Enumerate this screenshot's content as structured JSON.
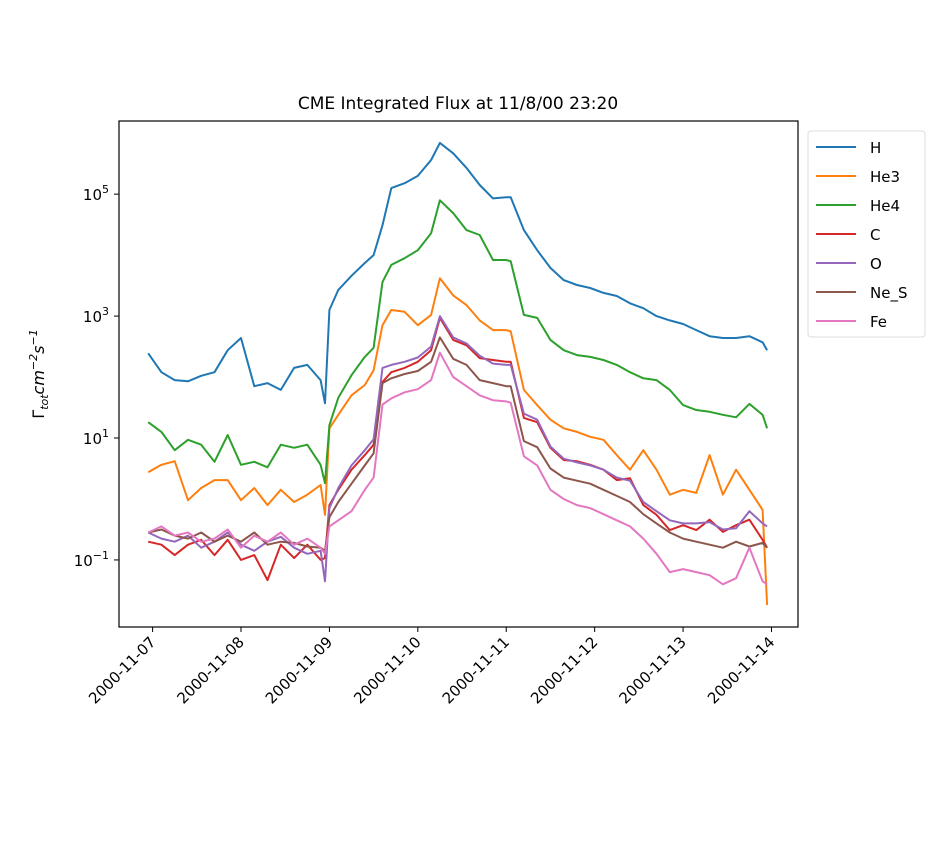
{
  "chart_data": {
    "type": "line",
    "title": "CME Integrated Flux at 11/8/00 23:20",
    "xlabel": "",
    "ylabel": {
      "symbol": "Γ",
      "sub": "tot",
      "unit1": "cm",
      "exp1": "−2",
      "unit2": "s",
      "exp2": "−1"
    },
    "yscale": "log",
    "y_values_are": "log10 of flux",
    "ylim_log10": [
      -2.1,
      6.2
    ],
    "xlim_day_of_nov_2000": [
      6.62,
      14.3
    ],
    "yticks_log10": [
      -1,
      1,
      3,
      5
    ],
    "ytick_labels": [
      {
        "base": "10",
        "exp": "−1"
      },
      {
        "base": "10",
        "exp": "1"
      },
      {
        "base": "10",
        "exp": "3"
      },
      {
        "base": "10",
        "exp": "5"
      }
    ],
    "xticks_day": [
      7,
      8,
      9,
      10,
      11,
      12,
      13,
      14
    ],
    "xtick_labels": [
      "2000-11-07",
      "2000-11-08",
      "2000-11-09",
      "2000-11-10",
      "2000-11-11",
      "2000-11-12",
      "2000-11-13",
      "2000-11-14"
    ],
    "legend_position": "outside-upper-right",
    "grid": false,
    "x_day": [
      6.95,
      7.1,
      7.25,
      7.4,
      7.55,
      7.7,
      7.85,
      8.0,
      8.15,
      8.3,
      8.45,
      8.6,
      8.75,
      8.9,
      8.95,
      9.0,
      9.1,
      9.25,
      9.4,
      9.5,
      9.6,
      9.7,
      9.85,
      10.0,
      10.15,
      10.25,
      10.4,
      10.55,
      10.7,
      10.85,
      11.0,
      11.05,
      11.2,
      11.35,
      11.5,
      11.65,
      11.8,
      11.95,
      12.1,
      12.25,
      12.4,
      12.55,
      12.7,
      12.85,
      13.0,
      13.15,
      13.3,
      13.45,
      13.6,
      13.75,
      13.9,
      13.95
    ],
    "series": [
      {
        "name": "H",
        "color": "#1f77b4",
        "log10_values": [
          2.39,
          2.08,
          1.95,
          1.93,
          2.02,
          2.08,
          2.44,
          2.64,
          1.85,
          1.9,
          1.79,
          2.15,
          2.2,
          1.95,
          1.57,
          3.1,
          3.43,
          3.66,
          3.87,
          4.0,
          4.49,
          5.1,
          5.18,
          5.3,
          5.56,
          5.84,
          5.67,
          5.43,
          5.15,
          4.93,
          4.95,
          4.95,
          4.41,
          4.08,
          3.79,
          3.59,
          3.51,
          3.46,
          3.38,
          3.33,
          3.21,
          3.13,
          3.0,
          2.93,
          2.87,
          2.77,
          2.67,
          2.64,
          2.64,
          2.67,
          2.57,
          2.44
        ]
      },
      {
        "name": "He3",
        "color": "#ff7f0e",
        "log10_values": [
          0.44,
          0.56,
          0.62,
          -0.02,
          0.18,
          0.31,
          0.31,
          -0.02,
          0.18,
          -0.1,
          0.15,
          -0.05,
          0.07,
          0.23,
          -0.26,
          1.16,
          1.38,
          1.7,
          1.87,
          2.11,
          2.85,
          3.1,
          3.07,
          2.85,
          3.02,
          3.62,
          3.34,
          3.18,
          2.93,
          2.77,
          2.77,
          2.75,
          1.79,
          1.54,
          1.3,
          1.16,
          1.1,
          1.02,
          0.97,
          0.72,
          0.48,
          0.8,
          0.48,
          0.07,
          0.15,
          0.1,
          0.72,
          0.07,
          0.48,
          0.15,
          -0.18,
          -1.74
        ]
      },
      {
        "name": "He4",
        "color": "#2ca02c",
        "log10_values": [
          1.26,
          1.1,
          0.8,
          0.97,
          0.89,
          0.61,
          1.05,
          0.56,
          0.61,
          0.52,
          0.89,
          0.84,
          0.89,
          0.56,
          0.26,
          1.21,
          1.66,
          2.03,
          2.33,
          2.48,
          3.56,
          3.84,
          3.95,
          4.08,
          4.36,
          4.9,
          4.69,
          4.41,
          4.33,
          3.92,
          3.92,
          3.9,
          3.02,
          2.97,
          2.61,
          2.44,
          2.36,
          2.33,
          2.28,
          2.2,
          2.08,
          1.98,
          1.95,
          1.79,
          1.54,
          1.46,
          1.43,
          1.38,
          1.34,
          1.56,
          1.38,
          1.16
        ]
      },
      {
        "name": "C",
        "color": "#d62728",
        "log10_values": [
          -0.7,
          -0.75,
          -0.92,
          -0.75,
          -0.67,
          -0.92,
          -0.67,
          -1.0,
          -0.92,
          -1.33,
          -0.75,
          -0.97,
          -0.75,
          -1.0,
          -0.97,
          -0.1,
          0.15,
          0.48,
          0.72,
          0.89,
          1.92,
          2.08,
          2.15,
          2.25,
          2.44,
          2.97,
          2.61,
          2.52,
          2.31,
          2.28,
          2.25,
          2.25,
          1.33,
          1.26,
          0.84,
          0.64,
          0.62,
          0.56,
          0.48,
          0.31,
          0.34,
          -0.1,
          -0.26,
          -0.51,
          -0.43,
          -0.51,
          -0.34,
          -0.54,
          -0.43,
          -0.34,
          -0.67,
          -0.8
        ]
      },
      {
        "name": "O",
        "color": "#9467bd",
        "log10_values": [
          -0.55,
          -0.65,
          -0.7,
          -0.6,
          -0.8,
          -0.7,
          -0.55,
          -0.75,
          -0.85,
          -0.7,
          -0.62,
          -0.8,
          -0.9,
          -0.85,
          -1.35,
          -0.15,
          0.18,
          0.55,
          0.8,
          0.98,
          2.15,
          2.2,
          2.25,
          2.32,
          2.5,
          3.0,
          2.65,
          2.55,
          2.35,
          2.22,
          2.2,
          2.2,
          1.4,
          1.3,
          0.86,
          0.66,
          0.6,
          0.55,
          0.48,
          0.35,
          0.3,
          -0.05,
          -0.2,
          -0.35,
          -0.4,
          -0.4,
          -0.38,
          -0.5,
          -0.48,
          -0.2,
          -0.4,
          -0.45
        ]
      },
      {
        "name": "Ne_S",
        "color": "#8c564b",
        "log10_values": [
          -0.55,
          -0.5,
          -0.6,
          -0.65,
          -0.55,
          -0.7,
          -0.6,
          -0.7,
          -0.55,
          -0.75,
          -0.7,
          -0.72,
          -0.78,
          -0.8,
          -0.85,
          -0.3,
          -0.05,
          0.25,
          0.55,
          0.75,
          1.9,
          1.98,
          2.05,
          2.1,
          2.25,
          2.65,
          2.3,
          2.2,
          1.95,
          1.9,
          1.85,
          1.85,
          0.95,
          0.85,
          0.5,
          0.35,
          0.3,
          0.25,
          0.15,
          0.05,
          -0.05,
          -0.25,
          -0.4,
          -0.55,
          -0.65,
          -0.7,
          -0.75,
          -0.8,
          -0.7,
          -0.78,
          -0.72,
          -0.8
        ]
      },
      {
        "name": "Fe",
        "color": "#e377c2",
        "log10_values": [
          -0.55,
          -0.45,
          -0.6,
          -0.55,
          -0.7,
          -0.65,
          -0.5,
          -0.8,
          -0.6,
          -0.7,
          -0.55,
          -0.75,
          -0.65,
          -0.8,
          -0.9,
          -0.45,
          -0.35,
          -0.2,
          0.15,
          0.35,
          1.55,
          1.65,
          1.75,
          1.8,
          1.95,
          2.4,
          2.0,
          1.85,
          1.7,
          1.62,
          1.6,
          1.58,
          0.7,
          0.55,
          0.15,
          0.0,
          -0.1,
          -0.15,
          -0.25,
          -0.35,
          -0.45,
          -0.65,
          -0.9,
          -1.2,
          -1.15,
          -1.2,
          -1.25,
          -1.4,
          -1.3,
          -0.8,
          -1.35,
          -1.4
        ]
      }
    ]
  }
}
